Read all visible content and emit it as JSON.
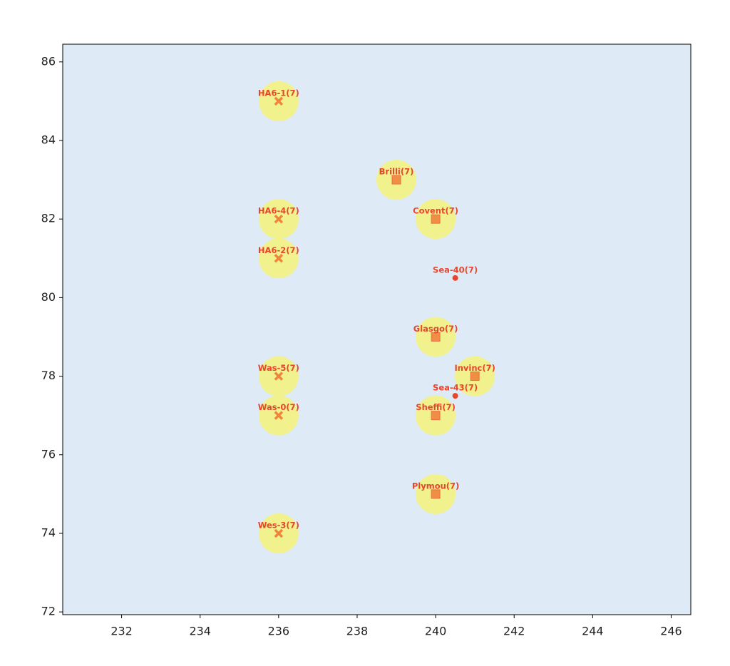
{
  "chart_data": {
    "type": "scatter",
    "xlim": [
      230.5,
      246.5
    ],
    "ylim": [
      71.93,
      86.45
    ],
    "xticks": [
      232,
      234,
      236,
      238,
      240,
      242,
      244,
      246
    ],
    "yticks": [
      72,
      74,
      76,
      78,
      80,
      82,
      84,
      86
    ],
    "background": "#deebf6",
    "halo_color": "#f5f27a",
    "marker_color": "#f0843c",
    "dot_color": "#e8452c",
    "points": [
      {
        "x": 236,
        "y": 85,
        "label": "HA6-1(7)",
        "marker": "x"
      },
      {
        "x": 236,
        "y": 82,
        "label": "HA6-4(7)",
        "marker": "x"
      },
      {
        "x": 236,
        "y": 81,
        "label": "HA6-2(7)",
        "marker": "x"
      },
      {
        "x": 236,
        "y": 78,
        "label": "Was-5(7)",
        "marker": "x"
      },
      {
        "x": 236,
        "y": 77,
        "label": "Was-0(7)",
        "marker": "x"
      },
      {
        "x": 236,
        "y": 74,
        "label": "Wes-3(7)",
        "marker": "x"
      },
      {
        "x": 239,
        "y": 83,
        "label": "Brilli(7)",
        "marker": "square"
      },
      {
        "x": 240,
        "y": 82,
        "label": "Covent(7)",
        "marker": "square"
      },
      {
        "x": 240,
        "y": 79,
        "label": "Glasgo(7)",
        "marker": "square"
      },
      {
        "x": 241,
        "y": 78,
        "label": "Invinc(7)",
        "marker": "square"
      },
      {
        "x": 240,
        "y": 77,
        "label": "Sheffi(7)",
        "marker": "square"
      },
      {
        "x": 240,
        "y": 75,
        "label": "Plymou(7)",
        "marker": "square"
      },
      {
        "x": 240.5,
        "y": 80.5,
        "label": "Sea-40(7)",
        "marker": "dot"
      },
      {
        "x": 240.5,
        "y": 77.5,
        "label": "Sea-43(7)",
        "marker": "dot"
      }
    ]
  }
}
